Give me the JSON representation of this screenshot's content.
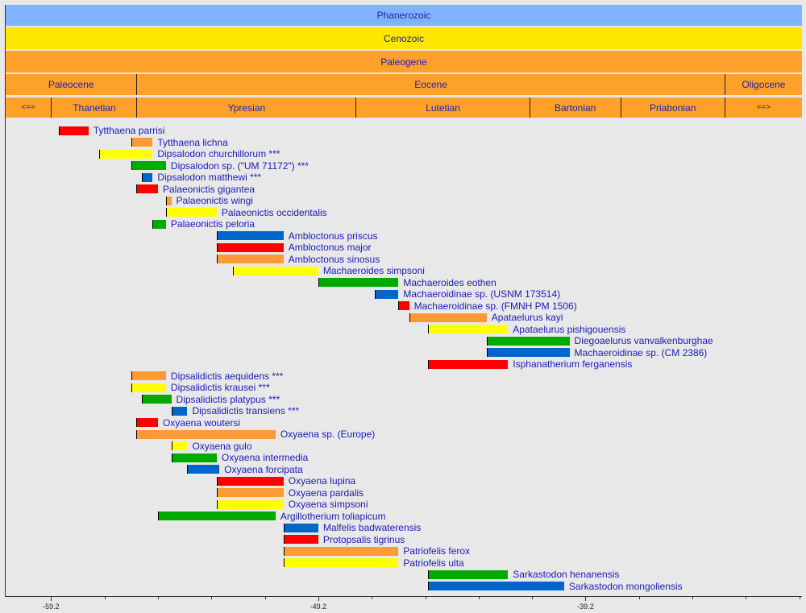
{
  "chart_data": {
    "type": "timeline-bar",
    "xlim": [
      -60.9,
      -31.1
    ],
    "x_ticks": [
      -59.2,
      -49.2,
      -39.2
    ],
    "minor_tick_step": 2,
    "colors": {
      "red": "#ff0000",
      "orange": "#ff9933",
      "yellow": "#ffff00",
      "green": "#00aa00",
      "blue": "#0066cc",
      "phanerozoic": "#80b3ff",
      "cenozoic": "#ffe600",
      "paleogene": "#ffa02a",
      "background": "#e8e8e8",
      "label": "#1a1ab8"
    },
    "timescale": {
      "eon": [
        {
          "label": "Phanerozoic",
          "start": -60.9,
          "end": -31.1
        }
      ],
      "era": [
        {
          "label": "Cenozoic",
          "start": -60.9,
          "end": -31.1
        }
      ],
      "period": [
        {
          "label": "Paleogene",
          "start": -60.9,
          "end": -31.1
        }
      ],
      "epoch": [
        {
          "label": "Paleocene",
          "start": -60.9,
          "end": -56.0
        },
        {
          "label": "Eocene",
          "start": -56.0,
          "end": -34.0
        },
        {
          "label": "Oligocene",
          "start": -34.0,
          "end": -31.1
        }
      ],
      "age": [
        {
          "label": "<==",
          "start": -60.9,
          "end": -59.2,
          "arrow": true
        },
        {
          "label": "Thanetian",
          "start": -59.2,
          "end": -56.0
        },
        {
          "label": "Ypresian",
          "start": -56.0,
          "end": -47.8
        },
        {
          "label": "Lutetian",
          "start": -47.8,
          "end": -41.3
        },
        {
          "label": "Bartonian",
          "start": -41.3,
          "end": -37.9
        },
        {
          "label": "Priabonian",
          "start": -37.9,
          "end": -34.0
        },
        {
          "label": "==>",
          "start": -34.0,
          "end": -31.1,
          "arrow": true
        }
      ]
    },
    "taxa": [
      {
        "name": "Tytthaena parrisi",
        "start": -58.9,
        "end": -57.8,
        "color": "red"
      },
      {
        "name": "Tytthaena lichna",
        "start": -56.2,
        "end": -55.4,
        "color": "orange"
      },
      {
        "name": "Dipsalodon churchillorum ***",
        "start": -57.4,
        "end": -55.4,
        "color": "yellow"
      },
      {
        "name": "Dipsalodon sp. (\"UM 71172\") ***",
        "start": -56.2,
        "end": -54.9,
        "color": "green"
      },
      {
        "name": "Dipsalodon matthewi ***",
        "start": -55.8,
        "end": -55.4,
        "color": "blue"
      },
      {
        "name": "Palaeonictis gigantea",
        "start": -56.0,
        "end": -55.2,
        "color": "red"
      },
      {
        "name": "Palaeonictis wingi",
        "start": -54.9,
        "end": -54.7,
        "color": "orange"
      },
      {
        "name": "Palaeonictis occidentalis",
        "start": -54.9,
        "end": -53.0,
        "color": "yellow"
      },
      {
        "name": "Palaeonictis peloria",
        "start": -55.4,
        "end": -54.9,
        "color": "green"
      },
      {
        "name": "Ambloctonus priscus",
        "start": -53.0,
        "end": -50.5,
        "color": "blue"
      },
      {
        "name": "Ambloctonus major",
        "start": -53.0,
        "end": -50.5,
        "color": "red"
      },
      {
        "name": "Ambloctonus sinosus",
        "start": -53.0,
        "end": -50.5,
        "color": "orange"
      },
      {
        "name": "Machaeroides simpsoni",
        "start": -52.4,
        "end": -49.2,
        "color": "yellow"
      },
      {
        "name": "Machaeroides eothen",
        "start": -49.2,
        "end": -46.2,
        "color": "green"
      },
      {
        "name": "Machaeroidinae sp. (USNM 173514)",
        "start": -47.1,
        "end": -46.2,
        "color": "blue"
      },
      {
        "name": "Machaeroidinae sp. (FMNH PM 1506)",
        "start": -46.2,
        "end": -45.8,
        "color": "red"
      },
      {
        "name": "Apataelurus kayi",
        "start": -45.8,
        "end": -42.9,
        "color": "orange"
      },
      {
        "name": "Apataelurus pishigouensis",
        "start": -45.1,
        "end": -42.1,
        "color": "yellow"
      },
      {
        "name": "Diegoaelurus vanvalkenburghae",
        "start": -42.9,
        "end": -39.8,
        "color": "green"
      },
      {
        "name": "Machaeroidinae sp. (CM 2386)",
        "start": -42.9,
        "end": -39.8,
        "color": "blue"
      },
      {
        "name": "Isphanatherium ferganensis",
        "start": -45.1,
        "end": -42.1,
        "color": "red"
      },
      {
        "name": "Dipsalidictis aequidens ***",
        "start": -56.2,
        "end": -54.9,
        "color": "orange"
      },
      {
        "name": "Dipsalidictis krausei ***",
        "start": -56.2,
        "end": -54.9,
        "color": "yellow"
      },
      {
        "name": "Dipsalidictis platypus ***",
        "start": -55.8,
        "end": -54.7,
        "color": "green"
      },
      {
        "name": "Dipsalidictis transiens ***",
        "start": -54.7,
        "end": -54.1,
        "color": "blue"
      },
      {
        "name": "Oxyaena woutersi",
        "start": -56.0,
        "end": -55.2,
        "color": "red"
      },
      {
        "name": "Oxyaena sp. (Europe)",
        "start": -56.0,
        "end": -50.8,
        "color": "orange"
      },
      {
        "name": "Oxyaena gulo",
        "start": -54.7,
        "end": -54.1,
        "color": "yellow"
      },
      {
        "name": "Oxyaena intermedia",
        "start": -54.7,
        "end": -53.0,
        "color": "green"
      },
      {
        "name": "Oxyaena forcipata",
        "start": -54.1,
        "end": -52.9,
        "color": "blue"
      },
      {
        "name": "Oxyaena lupina",
        "start": -53.0,
        "end": -50.5,
        "color": "red"
      },
      {
        "name": "Oxyaena pardalis",
        "start": -53.0,
        "end": -50.5,
        "color": "orange"
      },
      {
        "name": "Oxyaena simpsoni",
        "start": -53.0,
        "end": -50.5,
        "color": "yellow"
      },
      {
        "name": "Argillotherium toliapicum",
        "start": -55.2,
        "end": -50.8,
        "color": "green"
      },
      {
        "name": "Malfelis badwaterensis",
        "start": -50.5,
        "end": -49.2,
        "color": "blue"
      },
      {
        "name": "Protopsalis tigrinus",
        "start": -50.5,
        "end": -49.2,
        "color": "red"
      },
      {
        "name": "Patriofelis ferox",
        "start": -50.5,
        "end": -46.2,
        "color": "orange"
      },
      {
        "name": "Patriofelis ulta",
        "start": -50.5,
        "end": -46.2,
        "color": "yellow"
      },
      {
        "name": "Sarkastodon henanensis",
        "start": -45.1,
        "end": -42.1,
        "color": "green"
      },
      {
        "name": "Sarkastodon mongoliensis",
        "start": -45.1,
        "end": -40.0,
        "color": "blue"
      }
    ]
  }
}
